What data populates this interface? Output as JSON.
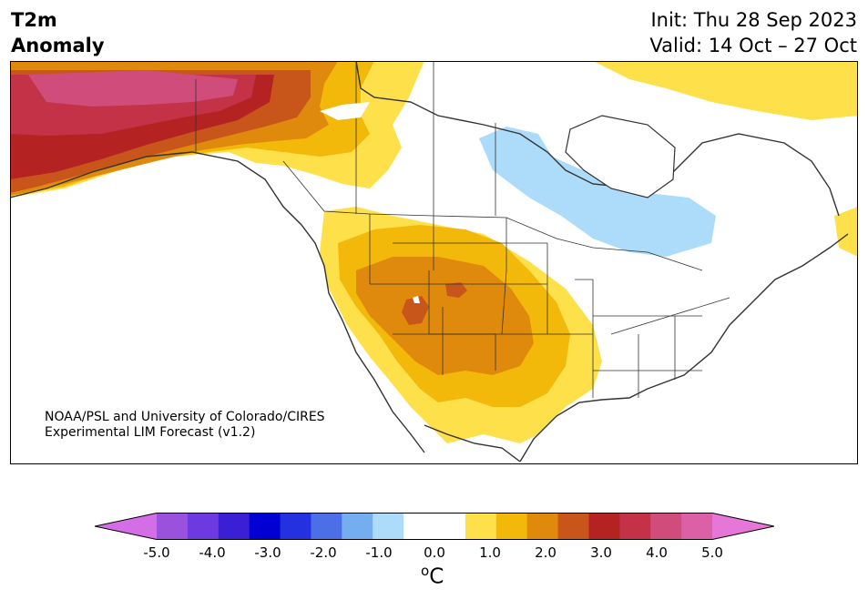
{
  "header": {
    "title_line1": "T2m",
    "title_line2": "Anomaly",
    "init": "Init: Thu 28 Sep 2023",
    "valid": "Valid: 14 Oct – 27 Oct"
  },
  "credit": {
    "line1": "NOAA/PSL and University of Colorado/CIRES",
    "line2": "Experimental LIM Forecast (v1.2)"
  },
  "colorbar": {
    "ticks": [
      "-5.0",
      "-4.0",
      "-3.0",
      "-2.0",
      "-1.0",
      "0.0",
      "1.0",
      "2.0",
      "3.0",
      "4.0",
      "5.0"
    ],
    "unit_sup": "o",
    "unit": "C",
    "colors": [
      "#9a52dc",
      "#6c3ae0",
      "#3b1fd4",
      "#0000d2",
      "#2431e0",
      "#4c6fe8",
      "#74aef0",
      "#acdcfa",
      "#ffffff",
      "#ffffff",
      "#fee04a",
      "#f2b80a",
      "#df8a0c",
      "#c8561a",
      "#b42222",
      "#c43248",
      "#d04c7a",
      "#dc60a6"
    ],
    "under_color": "#d36ee6",
    "over_color": "#e676d8"
  },
  "anomaly_regions": [
    {
      "name": "positive 0.5-1.0",
      "color": "#fee04a"
    },
    {
      "name": "positive 1.0-1.5",
      "color": "#f2b80a"
    },
    {
      "name": "positive 1.5-2.0",
      "color": "#df8a0c"
    },
    {
      "name": "positive 2.0-2.5",
      "color": "#c8561a"
    },
    {
      "name": "positive 2.5-3.0",
      "color": "#b42222"
    },
    {
      "name": "positive 3.0-3.5",
      "color": "#c43248"
    },
    {
      "name": "positive 4.0-4.5",
      "color": "#d04c7a"
    },
    {
      "name": "negative -1.0--0.5",
      "color": "#acdcfa"
    }
  ]
}
